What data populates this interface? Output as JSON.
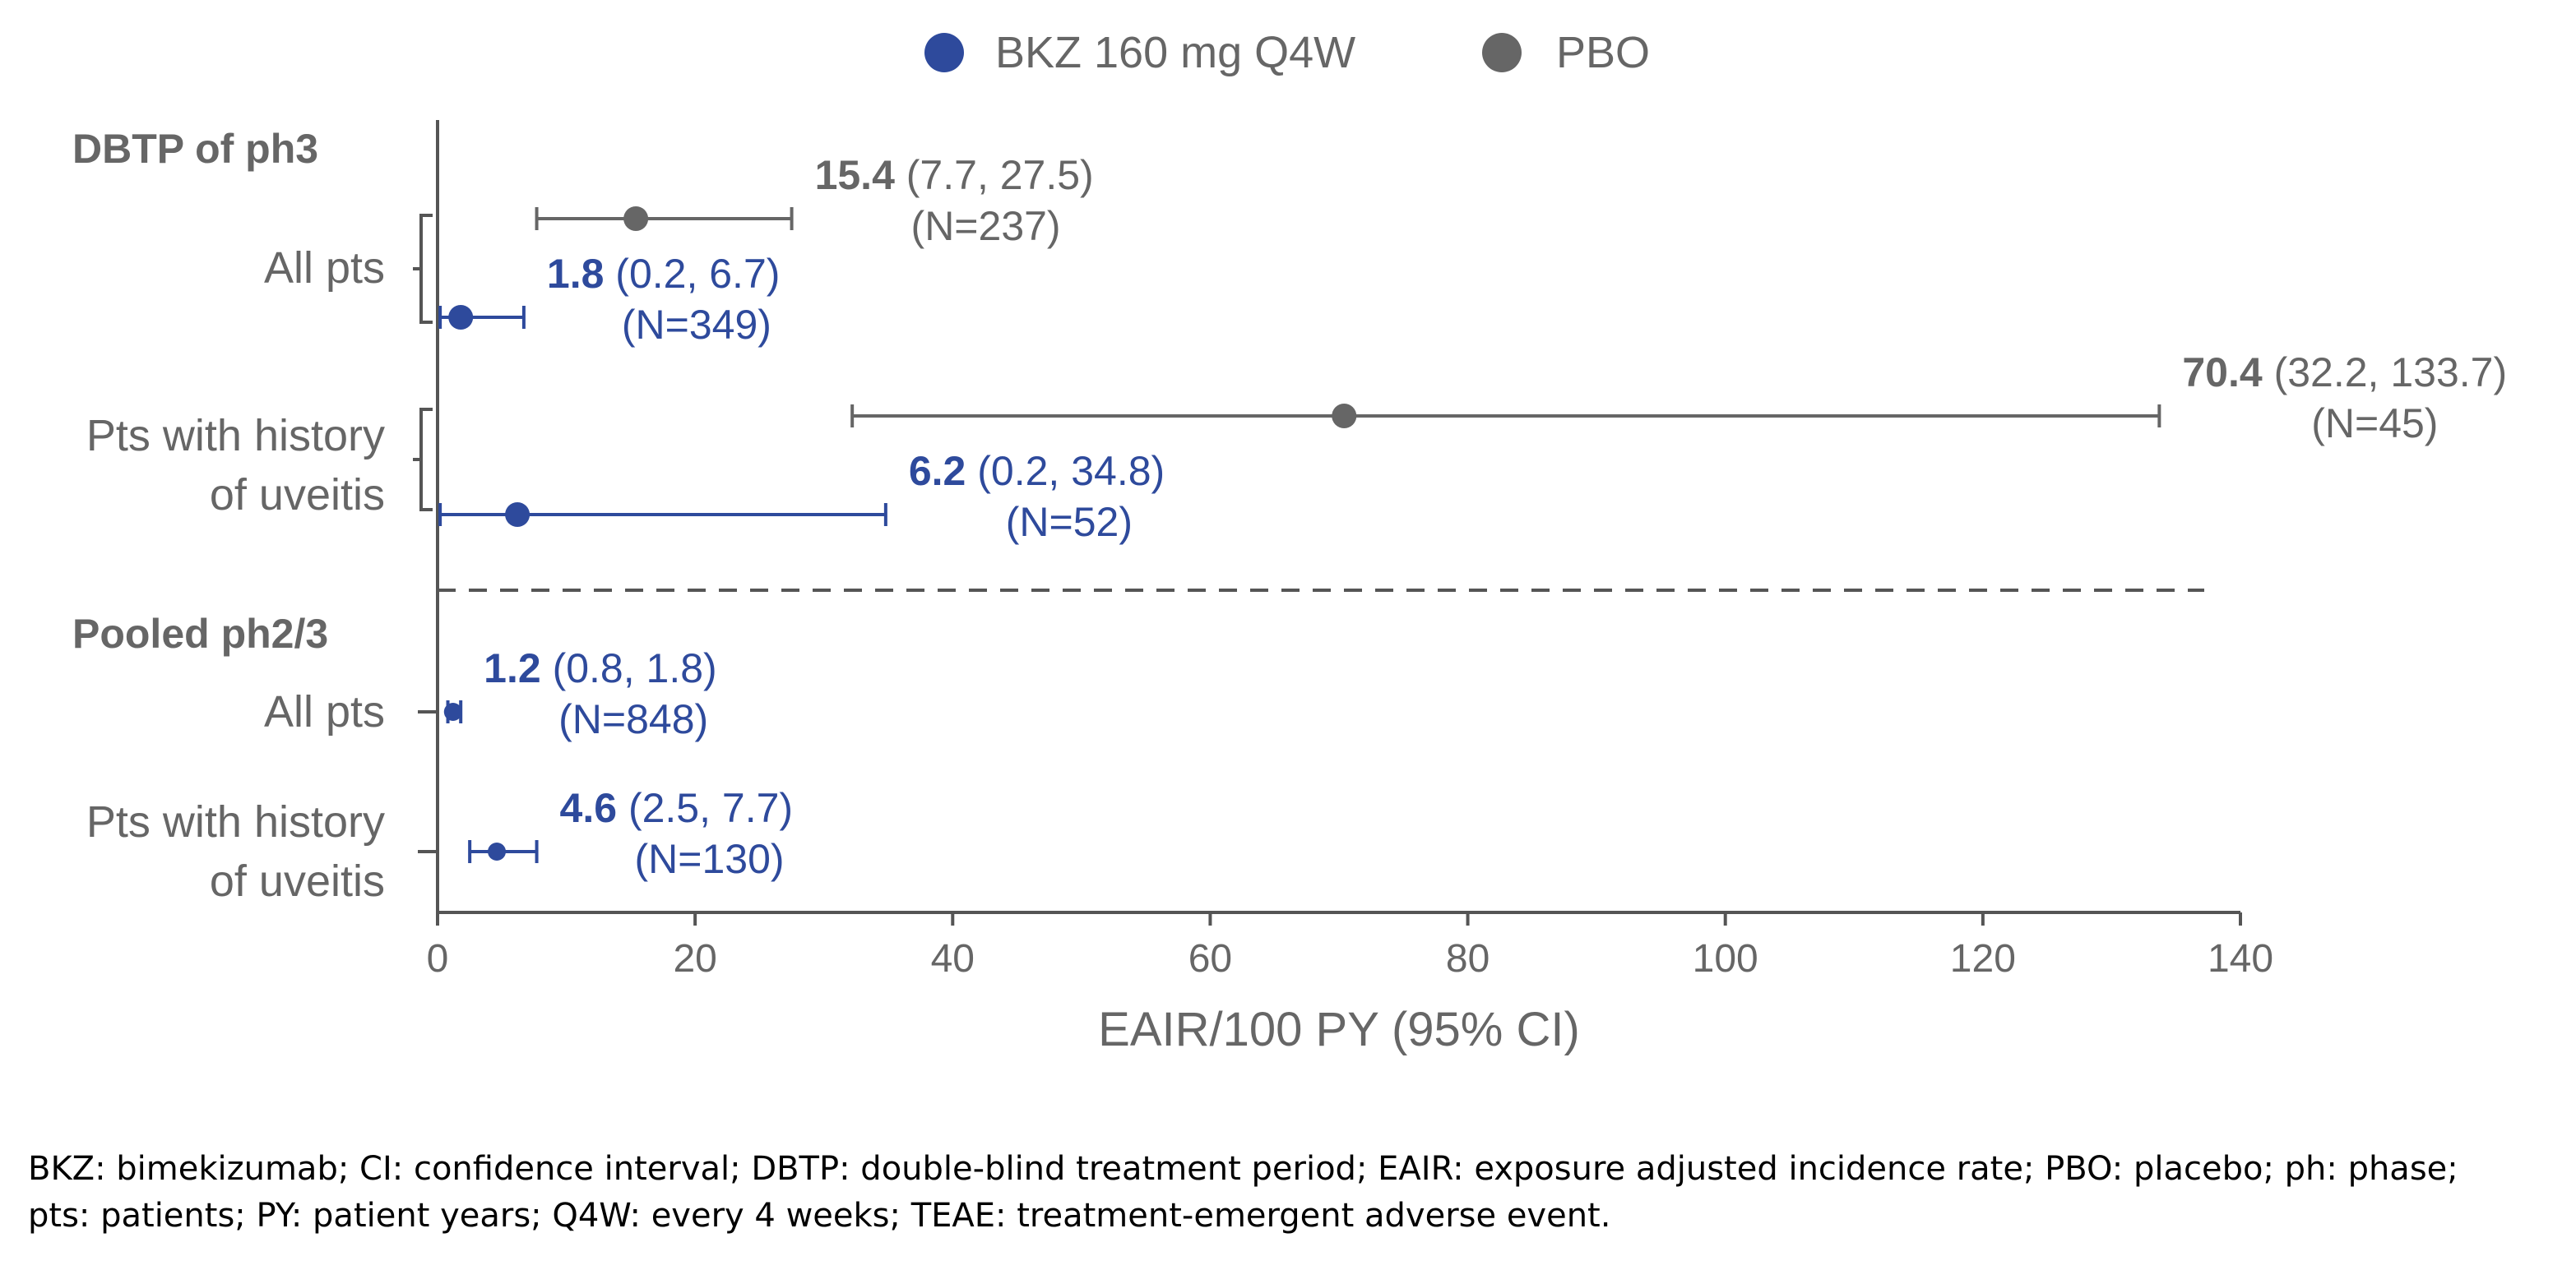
{
  "chart_data": {
    "type": "forest",
    "xlabel": "EAIR/100 PY (95% CI)",
    "xlim": [
      0,
      140
    ],
    "xticks": [
      0,
      20,
      40,
      60,
      80,
      100,
      120,
      140
    ],
    "grid": false,
    "legend_position": "top-center",
    "series": [
      {
        "name": "BKZ 160 mg Q4W",
        "color": "#2e4a9c"
      },
      {
        "name": "PBO",
        "color": "#666666"
      }
    ],
    "sections": [
      {
        "label": "DBTP of ph3",
        "groups": [
          {
            "label": [
              "All pts"
            ],
            "bracket": true,
            "rows": [
              {
                "series": "PBO",
                "estimate": 15.4,
                "ci_low": 7.7,
                "ci_high": 27.5,
                "estimate_text": "15.4",
                "ci_text": "(7.7, 27.5)",
                "n_text": "(N=237)"
              },
              {
                "series": "BKZ 160 mg Q4W",
                "estimate": 1.8,
                "ci_low": 0.2,
                "ci_high": 6.7,
                "estimate_text": "1.8",
                "ci_text": "(0.2, 6.7)",
                "n_text": "(N=349)"
              }
            ]
          },
          {
            "label": [
              "Pts with history",
              "of uveitis"
            ],
            "bracket": true,
            "rows": [
              {
                "series": "PBO",
                "estimate": 70.4,
                "ci_low": 32.2,
                "ci_high": 133.7,
                "estimate_text": "70.4",
                "ci_text": "(32.2, 133.7)",
                "n_text": "(N=45)"
              },
              {
                "series": "BKZ 160 mg Q4W",
                "estimate": 6.2,
                "ci_low": 0.2,
                "ci_high": 34.8,
                "estimate_text": "6.2",
                "ci_text": "(0.2, 34.8)",
                "n_text": "(N=52)"
              }
            ]
          }
        ]
      },
      {
        "label": "Pooled ph2/3",
        "groups": [
          {
            "label": [
              "All pts"
            ],
            "bracket": false,
            "rows": [
              {
                "series": "BKZ 160 mg Q4W",
                "estimate": 1.2,
                "ci_low": 0.8,
                "ci_high": 1.8,
                "estimate_text": "1.2",
                "ci_text": "(0.8, 1.8)",
                "n_text": "(N=848)"
              }
            ]
          },
          {
            "label": [
              "Pts with history",
              "of uveitis"
            ],
            "bracket": false,
            "rows": [
              {
                "series": "BKZ 160 mg Q4W",
                "estimate": 4.6,
                "ci_low": 2.5,
                "ci_high": 7.7,
                "estimate_text": "4.6",
                "ci_text": "(2.5, 7.7)",
                "n_text": "(N=130)"
              }
            ]
          }
        ]
      }
    ]
  },
  "footnote": {
    "line1": "BKZ: bimekizumab; CI: confidence interval; DBTP: double-blind treatment period; EAIR: exposure adjusted incidence rate; PBO: placebo; ph: phase;",
    "line2": "pts: patients; PY: patient years; Q4W: every 4 weeks; TEAE: treatment-emergent adverse event."
  }
}
